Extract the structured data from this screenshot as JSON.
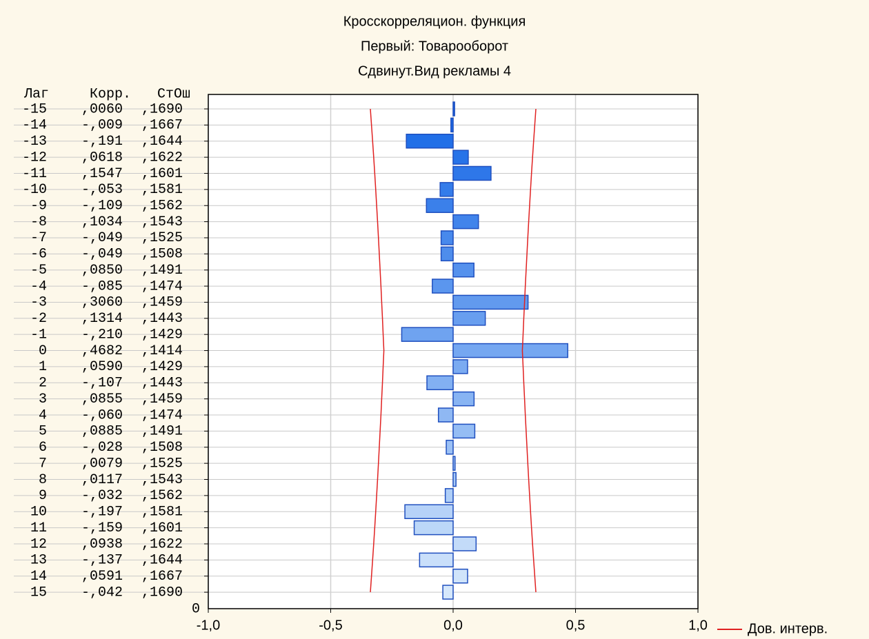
{
  "chart_data": {
    "type": "bar",
    "title": [
      "Кросскорреляцион. функция",
      "Первый: Товарооборот",
      "Сдвинут.Вид рекламы 4"
    ],
    "table_headers": [
      "Лаг",
      "Корр.",
      "СтОш"
    ],
    "categories": [
      "-15",
      "-14",
      "-13",
      "-12",
      "-11",
      "-10",
      "-9",
      "-8",
      "-7",
      "-6",
      "-5",
      "-4",
      "-3",
      "-2",
      "-1",
      "0",
      "1",
      "2",
      "3",
      "4",
      "5",
      "6",
      "7",
      "8",
      "9",
      "10",
      "11",
      "12",
      "13",
      "14",
      "15"
    ],
    "values": [
      0.006,
      -0.009,
      -0.191,
      0.0618,
      0.1547,
      -0.053,
      -0.109,
      0.1034,
      -0.049,
      -0.049,
      0.085,
      -0.085,
      0.306,
      0.1314,
      -0.21,
      0.4682,
      0.059,
      -0.107,
      0.0855,
      -0.06,
      0.0885,
      -0.028,
      0.0079,
      0.0117,
      -0.032,
      -0.197,
      -0.159,
      0.0938,
      -0.137,
      0.0591,
      -0.042
    ],
    "value_labels": [
      ",0060",
      "-,009",
      "-,191",
      ",0618",
      ",1547",
      "-,053",
      "-,109",
      ",1034",
      "-,049",
      "-,049",
      ",0850",
      "-,085",
      ",3060",
      ",1314",
      "-,210",
      ",4682",
      ",0590",
      "-,107",
      ",0855",
      "-,060",
      ",0885",
      "-,028",
      ",0079",
      ",0117",
      "-,032",
      "-,197",
      "-,159",
      ",0938",
      "-,137",
      ",0591",
      "-,042"
    ],
    "se": [
      0.169,
      0.1667,
      0.1644,
      0.1622,
      0.1601,
      0.1581,
      0.1562,
      0.1543,
      0.1525,
      0.1508,
      0.1491,
      0.1474,
      0.1459,
      0.1443,
      0.1429,
      0.1414,
      0.1429,
      0.1443,
      0.1459,
      0.1474,
      0.1491,
      0.1508,
      0.1525,
      0.1543,
      0.1562,
      0.1581,
      0.1601,
      0.1622,
      0.1644,
      0.1667,
      0.169
    ],
    "se_labels": [
      ",1690",
      ",1667",
      ",1644",
      ",1622",
      ",1601",
      ",1581",
      ",1562",
      ",1543",
      ",1525",
      ",1508",
      ",1491",
      ",1474",
      ",1459",
      ",1443",
      ",1429",
      ",1414",
      ",1429",
      ",1443",
      ",1459",
      ",1474",
      ",1491",
      ",1508",
      ",1525",
      ",1543",
      ",1562",
      ",1581",
      ",1601",
      ",1622",
      ",1644",
      ",1667",
      ",1690"
    ],
    "confidence": {
      "name": "Дов. интерв.",
      "color": "#e02020",
      "upper": [
        0.338,
        0.3334,
        0.3288,
        0.3244,
        0.3202,
        0.3162,
        0.3124,
        0.3086,
        0.305,
        0.3016,
        0.2982,
        0.2948,
        0.2918,
        0.2886,
        0.2858,
        0.2828,
        0.2858,
        0.2886,
        0.2918,
        0.2948,
        0.2982,
        0.3016,
        0.305,
        0.3086,
        0.3124,
        0.3162,
        0.3202,
        0.3244,
        0.3288,
        0.3334,
        0.338
      ],
      "lower": [
        -0.338,
        -0.3334,
        -0.3288,
        -0.3244,
        -0.3202,
        -0.3162,
        -0.3124,
        -0.3086,
        -0.305,
        -0.3016,
        -0.2982,
        -0.2948,
        -0.2918,
        -0.2886,
        -0.2858,
        -0.2828,
        -0.2858,
        -0.2886,
        -0.2918,
        -0.2948,
        -0.2982,
        -0.3016,
        -0.305,
        -0.3086,
        -0.3124,
        -0.3162,
        -0.3202,
        -0.3244,
        -0.3288,
        -0.3334,
        -0.338
      ]
    },
    "row_axis_tick": 0,
    "xlim": [
      -1,
      1
    ],
    "xticks": [
      {
        "value": -1,
        "label": "-1,0"
      },
      {
        "value": -0.5,
        "label": "-0,5"
      },
      {
        "value": 0,
        "label": "0,0"
      },
      {
        "value": 0.5,
        "label": "0,5"
      },
      {
        "value": 1,
        "label": "1,0"
      }
    ],
    "grid": true,
    "bar_color_top": "#1466e6",
    "bar_color_bottom": "#d6e8fb",
    "bar_edge": "#1f4fbf"
  }
}
